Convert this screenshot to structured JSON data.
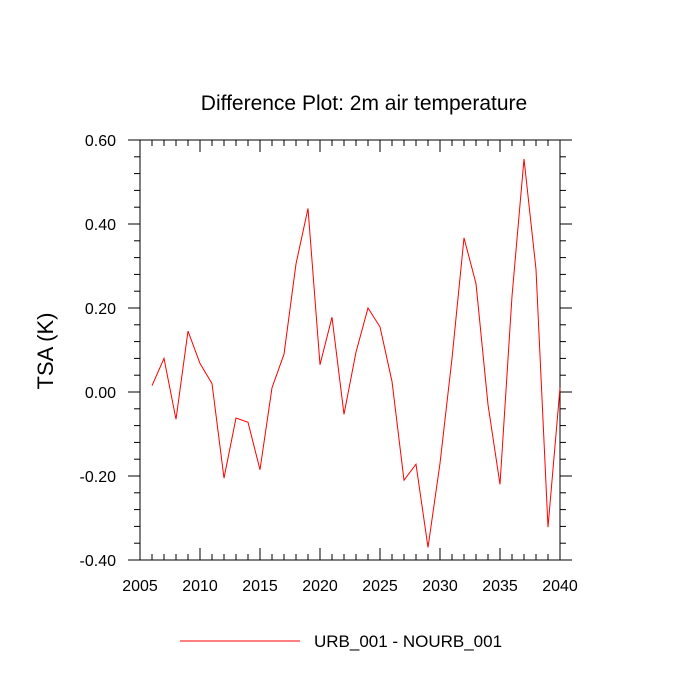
{
  "chart_data": {
    "type": "line",
    "title": "Difference Plot: 2m air temperature",
    "xlabel": "",
    "ylabel": "TSA  (K)",
    "xlim": [
      2005,
      2040
    ],
    "ylim": [
      -0.4,
      0.6
    ],
    "x_ticks": [
      2005,
      2010,
      2015,
      2020,
      2025,
      2030,
      2035,
      2040
    ],
    "x_tick_labels": [
      "2005",
      "2010",
      "2015",
      "2020",
      "2025",
      "2030",
      "2035",
      "2040"
    ],
    "y_ticks": [
      -0.4,
      -0.2,
      0.0,
      0.2,
      0.4,
      0.6
    ],
    "y_tick_labels": [
      "-0.40",
      "-0.20",
      "0.00",
      "0.20",
      "0.40",
      "0.60"
    ],
    "grid": false,
    "legend_position": "bottom-center",
    "series": [
      {
        "name": "URB_001 - NOURB_001",
        "color": "#ff0000",
        "x": [
          2006,
          2007,
          2008,
          2009,
          2010,
          2011,
          2012,
          2013,
          2014,
          2015,
          2016,
          2017,
          2018,
          2019,
          2020,
          2021,
          2022,
          2023,
          2024,
          2025,
          2026,
          2027,
          2028,
          2029,
          2030,
          2031,
          2032,
          2033,
          2034,
          2035,
          2036,
          2037,
          2038,
          2039,
          2040
        ],
        "values": [
          0.015,
          0.08,
          -0.065,
          0.145,
          0.068,
          0.02,
          -0.205,
          -0.062,
          -0.072,
          -0.185,
          0.01,
          0.09,
          0.305,
          0.437,
          0.065,
          0.178,
          -0.053,
          0.095,
          0.2,
          0.155,
          0.025,
          -0.21,
          -0.172,
          -0.37,
          -0.17,
          0.08,
          0.367,
          0.258,
          -0.03,
          -0.22,
          0.228,
          0.555,
          0.292,
          -0.322,
          0.01
        ]
      }
    ]
  }
}
